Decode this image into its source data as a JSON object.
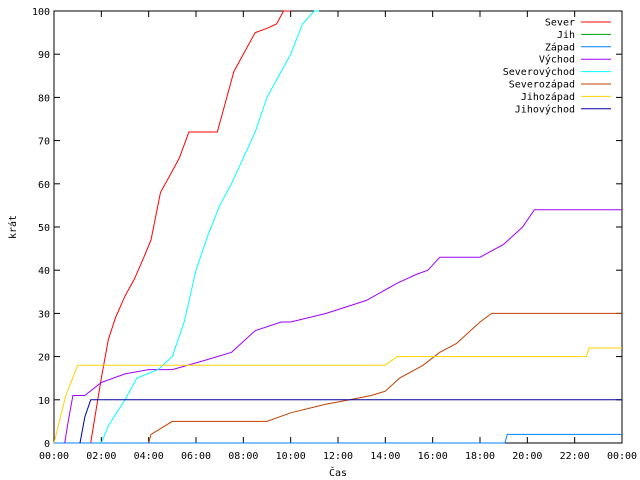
{
  "chart_data": {
    "type": "line",
    "xlabel": "Čas",
    "ylabel": "krát",
    "xlim": [
      0,
      24
    ],
    "ylim": [
      0,
      100
    ],
    "x_ticks": [
      {
        "value": 0,
        "label": "00:00"
      },
      {
        "value": 2,
        "label": "02:00"
      },
      {
        "value": 4,
        "label": "04:00"
      },
      {
        "value": 6,
        "label": "06:00"
      },
      {
        "value": 8,
        "label": "08:00"
      },
      {
        "value": 10,
        "label": "10:00"
      },
      {
        "value": 12,
        "label": "12:00"
      },
      {
        "value": 14,
        "label": "14:00"
      },
      {
        "value": 16,
        "label": "16:00"
      },
      {
        "value": 18,
        "label": "18:00"
      },
      {
        "value": 20,
        "label": "20:00"
      },
      {
        "value": 22,
        "label": "22:00"
      },
      {
        "value": 24,
        "label": "00:00"
      }
    ],
    "y_ticks": [
      {
        "value": 0,
        "label": "0"
      },
      {
        "value": 10,
        "label": "10"
      },
      {
        "value": 20,
        "label": "20"
      },
      {
        "value": 30,
        "label": "30"
      },
      {
        "value": 40,
        "label": "40"
      },
      {
        "value": 50,
        "label": "50"
      },
      {
        "value": 60,
        "label": "60"
      },
      {
        "value": 70,
        "label": "70"
      },
      {
        "value": 80,
        "label": "80"
      },
      {
        "value": 90,
        "label": "90"
      },
      {
        "value": 100,
        "label": "100"
      }
    ],
    "grid": false,
    "legend_position": "top-right",
    "series": [
      {
        "name": "Sever",
        "color": "#ff0000",
        "x": [
          1.55,
          1.7,
          2.0,
          2.3,
          2.6,
          3.0,
          3.4,
          3.8,
          4.1,
          4.5,
          4.9,
          5.3,
          5.7,
          6.1,
          6.9,
          7.3,
          7.6,
          8.0,
          8.5,
          9.0,
          9.4,
          9.7,
          10.0
        ],
        "y": [
          0,
          5,
          15,
          24,
          29,
          34,
          38,
          43,
          47,
          58,
          62,
          66,
          72,
          72,
          72,
          80,
          86,
          90,
          95,
          96,
          97,
          100,
          100
        ]
      },
      {
        "name": "Jih",
        "color": "#00a000",
        "x": [],
        "y": []
      },
      {
        "name": "Západ",
        "color": "#0080ff",
        "x": [
          0,
          19.05,
          19.15,
          24.0
        ],
        "y": [
          0,
          0,
          2,
          2
        ]
      },
      {
        "name": "Východ",
        "color": "#a000ff",
        "x": [
          0.45,
          0.6,
          0.8,
          1.3,
          2.0,
          3.0,
          4.0,
          5.0,
          6.3,
          7.5,
          8.5,
          9.6,
          10.0,
          11.5,
          13.2,
          14.5,
          15.3,
          15.8,
          16.3,
          18.0,
          19.0,
          19.8,
          20.3,
          24.0
        ],
        "y": [
          0,
          5,
          11,
          11,
          14,
          16,
          17,
          17,
          19,
          21,
          26,
          28,
          28,
          30,
          33,
          37,
          39,
          40,
          43,
          43,
          46,
          50,
          54,
          54
        ]
      },
      {
        "name": "Severovýchod",
        "color": "#00ffff",
        "x": [
          2.0,
          2.3,
          3.0,
          3.5,
          4.4,
          5.0,
          5.5,
          6.0,
          6.5,
          7.0,
          7.5,
          8.0,
          8.5,
          9.0,
          9.5,
          10.0,
          10.5,
          11.0,
          11.2
        ],
        "y": [
          0,
          4,
          10,
          15,
          17,
          20,
          28,
          40,
          48,
          55,
          60,
          66,
          72,
          80,
          85,
          90,
          97,
          100,
          100
        ]
      },
      {
        "name": "Severozápad",
        "color": "#c04000",
        "x": [
          4.0,
          4.1,
          5.0,
          6.5,
          9.0,
          10.0,
          11.5,
          12.5,
          13.4,
          14.0,
          14.6,
          15.6,
          16.3,
          17.0,
          17.4,
          18.0,
          18.5,
          20.0,
          24.0
        ],
        "y": [
          0,
          2,
          5,
          5,
          5,
          7,
          9,
          10,
          11,
          12,
          15,
          18,
          21,
          23,
          25,
          28,
          30,
          30,
          30
        ]
      },
      {
        "name": "Jihozápad",
        "color": "#ffd000",
        "x": [
          0.0,
          0.5,
          1.0,
          2.0,
          14.0,
          14.5,
          22.5,
          22.6,
          24.0
        ],
        "y": [
          0,
          11,
          18,
          18,
          18,
          20,
          20,
          22,
          22
        ]
      },
      {
        "name": "Jihovýchod",
        "color": "#0000a0",
        "x": [
          1.1,
          1.3,
          1.55,
          2.0,
          24.0
        ],
        "y": [
          0,
          6,
          10,
          10,
          10
        ]
      }
    ]
  }
}
